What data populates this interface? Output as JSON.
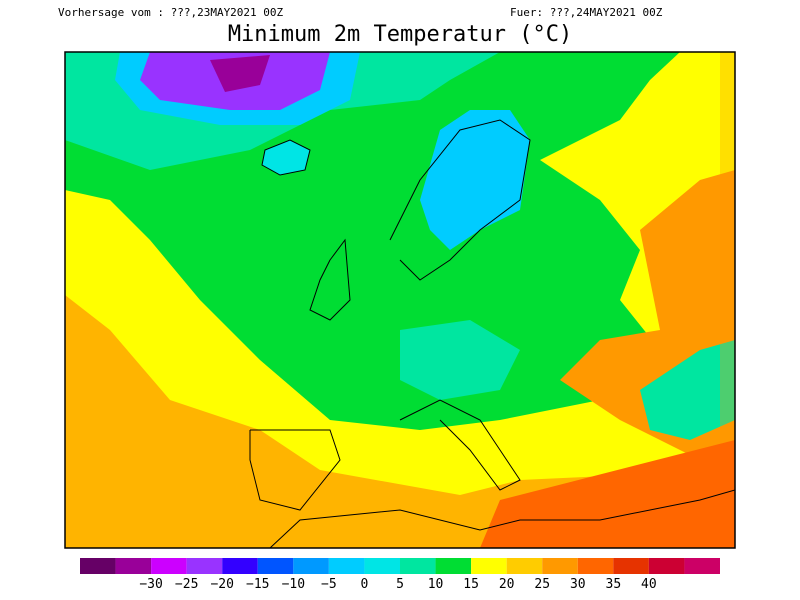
{
  "header": {
    "left": "Vorhersage vom : ???,23MAY2021 00Z",
    "right": "Fuer: ???,24MAY2021 00Z",
    "title": "Minimum 2m Temperatur (°C)"
  },
  "legend": {
    "colors": [
      "#660066",
      "#990099",
      "#cc00ff",
      "#9933ff",
      "#3300ff",
      "#0055ff",
      "#0099ff",
      "#00ccff",
      "#00e5e5",
      "#00e6a0",
      "#00dd33",
      "#ffff00",
      "#ffcc00",
      "#ff9900",
      "#ff6600",
      "#e63300",
      "#cc0033",
      "#cc0066"
    ],
    "labels": [
      "−30",
      "−25",
      "−20",
      "−15",
      "−10",
      "−5",
      "0",
      "5",
      "10",
      "15",
      "20",
      "25",
      "30",
      "35",
      "40"
    ]
  }
}
